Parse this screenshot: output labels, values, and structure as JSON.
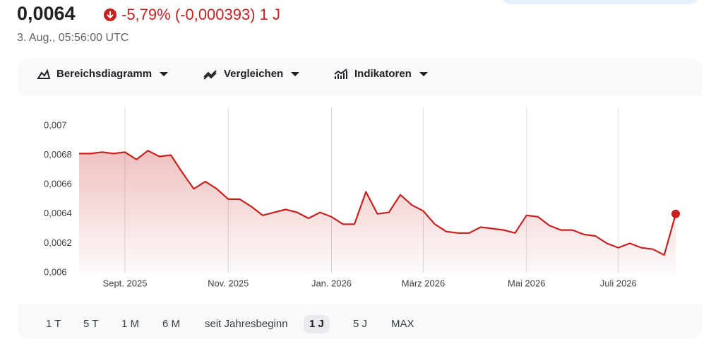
{
  "header": {
    "price": "0,0064",
    "change": "-5,79% (-0,000393) 1 J",
    "timestamp": "3. Aug., 05:56:00 UTC"
  },
  "toolbar": [
    "Bereichsdiagramm",
    "Vergleichen",
    "Indikatoren"
  ],
  "ranges": {
    "options": [
      "1 T",
      "5 T",
      "1 M",
      "6 M",
      "seit Jahresbeginn",
      "1 J",
      "5 J",
      "MAX"
    ],
    "selected": "1 J"
  },
  "chart_data": {
    "type": "area",
    "categories": [
      null,
      null,
      null,
      null,
      "Sept. 2025",
      null,
      null,
      null,
      null,
      null,
      null,
      null,
      null,
      "Nov. 2025",
      null,
      null,
      null,
      null,
      null,
      null,
      null,
      null,
      "Jan. 2026",
      null,
      null,
      null,
      null,
      null,
      null,
      null,
      "März 2026",
      null,
      null,
      null,
      null,
      null,
      null,
      null,
      null,
      "Mai 2026",
      null,
      null,
      null,
      null,
      null,
      null,
      null,
      "Juli 2026",
      null,
      null,
      null,
      null,
      null
    ],
    "series": [
      {
        "color": "#c5221f",
        "values": [
          0.00681,
          0.00681,
          0.00682,
          0.00681,
          0.00682,
          0.00677,
          0.00683,
          0.00679,
          0.0068,
          0.00668,
          0.00657,
          0.00662,
          0.00657,
          0.0065,
          0.0065,
          0.00645,
          0.00639,
          0.00641,
          0.00643,
          0.00641,
          0.00637,
          0.00641,
          0.00638,
          0.00633,
          0.00633,
          0.00655,
          0.0064,
          0.00641,
          0.00653,
          0.00646,
          0.00642,
          0.00633,
          0.00628,
          0.00627,
          0.00627,
          0.00631,
          0.0063,
          0.00629,
          0.00627,
          0.00639,
          0.00638,
          0.00632,
          0.00629,
          0.00629,
          0.00626,
          0.00625,
          0.0062,
          0.00617,
          0.0062,
          0.00617,
          0.00616,
          0.00612,
          0.0064
        ]
      }
    ],
    "ylim": [
      0.006,
      0.0071
    ],
    "yticks": [
      {
        "value": 0.006,
        "label": "0,006"
      },
      {
        "value": 0.0062,
        "label": "0,0062"
      },
      {
        "value": 0.0064,
        "label": "0,0064"
      },
      {
        "value": 0.0066,
        "label": "0,0066"
      },
      {
        "value": 0.0068,
        "label": "0,0068"
      },
      {
        "value": 0.007,
        "label": "0,007"
      }
    ],
    "grid": true
  }
}
